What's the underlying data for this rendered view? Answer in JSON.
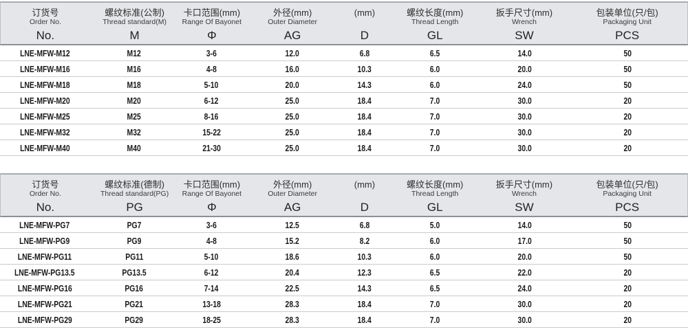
{
  "colors": {
    "header_bg": "#e4e6e9",
    "header_bottom_border": "#8c9094",
    "row_separator": "#c9cbce",
    "body_text": "#1b1b1b"
  },
  "tables": [
    {
      "name": "metric-thread-table",
      "keys": [
        "order-no",
        "thread-standard",
        "bayonet-range",
        "outer-diameter",
        "d",
        "thread-length",
        "wrench",
        "pcs"
      ],
      "columns": [
        {
          "zh": "订货号",
          "en": "Order No.",
          "symbol": "No."
        },
        {
          "zh": "螺纹标准(公制)",
          "en": "Thread standard(M)",
          "symbol": "M"
        },
        {
          "zh": "卡口范围(mm)",
          "en": "Range Of Bayonet",
          "symbol": "Φ"
        },
        {
          "zh": "外径(mm)",
          "en": "Outer Diameter",
          "symbol": "AG"
        },
        {
          "zh": "(mm)",
          "en": "",
          "symbol": "D"
        },
        {
          "zh": "螺纹长度(mm)",
          "en": "Thread Length",
          "symbol": "GL"
        },
        {
          "zh": "扳手尺寸(mm)",
          "en": "Wrench",
          "symbol": "SW"
        },
        {
          "zh": "包装单位(只/包)",
          "en": "Packaging Unit",
          "symbol": "PCS"
        }
      ],
      "rows": [
        [
          "LNE-MFW-M12",
          "M12",
          "3-6",
          "12.0",
          "6.8",
          "6.5",
          "14.0",
          "50"
        ],
        [
          "LNE-MFW-M16",
          "M16",
          "4-8",
          "16.0",
          "10.3",
          "6.0",
          "20.0",
          "50"
        ],
        [
          "LNE-MFW-M18",
          "M18",
          "5-10",
          "20.0",
          "14.3",
          "6.0",
          "24.0",
          "50"
        ],
        [
          "LNE-MFW-M20",
          "M20",
          "6-12",
          "25.0",
          "18.4",
          "7.0",
          "30.0",
          "20"
        ],
        [
          "LNE-MFW-M25",
          "M25",
          "8-16",
          "25.0",
          "18.4",
          "7.0",
          "30.0",
          "20"
        ],
        [
          "LNE-MFW-M32",
          "M32",
          "15-22",
          "25.0",
          "18.4",
          "7.0",
          "30.0",
          "20"
        ],
        [
          "LNE-MFW-M40",
          "M40",
          "21-30",
          "25.0",
          "18.4",
          "7.0",
          "30.0",
          "20"
        ]
      ]
    },
    {
      "name": "pg-thread-table",
      "keys": [
        "order-no",
        "thread-standard",
        "bayonet-range",
        "outer-diameter",
        "d",
        "thread-length",
        "wrench",
        "pcs"
      ],
      "columns": [
        {
          "zh": "订货号",
          "en": "Order No.",
          "symbol": "No."
        },
        {
          "zh": "螺纹标准(德制)",
          "en": "Thread standard(PG)",
          "symbol": "PG"
        },
        {
          "zh": "卡口范围(mm)",
          "en": "Range Of Bayonet",
          "symbol": "Φ"
        },
        {
          "zh": "外径(mm)",
          "en": "Outer Diameter",
          "symbol": "AG"
        },
        {
          "zh": "(mm)",
          "en": "",
          "symbol": "D"
        },
        {
          "zh": "螺纹长度(mm)",
          "en": "Thread Length",
          "symbol": "GL"
        },
        {
          "zh": "扳手尺寸(mm)",
          "en": "Wrench",
          "symbol": "SW"
        },
        {
          "zh": "包装单位(只/包)",
          "en": "Packaging Unit",
          "symbol": "PCS"
        }
      ],
      "rows": [
        [
          "LNE-MFW-PG7",
          "PG7",
          "3-6",
          "12.5",
          "6.8",
          "5.0",
          "14.0",
          "50"
        ],
        [
          "LNE-MFW-PG9",
          "PG9",
          "4-8",
          "15.2",
          "8.2",
          "6.0",
          "17.0",
          "50"
        ],
        [
          "LNE-MFW-PG11",
          "PG11",
          "5-10",
          "18.6",
          "10.3",
          "6.0",
          "20.0",
          "50"
        ],
        [
          "LNE-MFW-PG13.5",
          "PG13.5",
          "6-12",
          "20.4",
          "12.3",
          "6.5",
          "22.0",
          "20"
        ],
        [
          "LNE-MFW-PG16",
          "PG16",
          "7-14",
          "22.5",
          "14.3",
          "6.5",
          "24.0",
          "20"
        ],
        [
          "LNE-MFW-PG21",
          "PG21",
          "13-18",
          "28.3",
          "18.4",
          "7.0",
          "30.0",
          "20"
        ],
        [
          "LNE-MFW-PG29",
          "PG29",
          "18-25",
          "28.3",
          "18.4",
          "7.0",
          "30.0",
          "20"
        ]
      ]
    }
  ]
}
